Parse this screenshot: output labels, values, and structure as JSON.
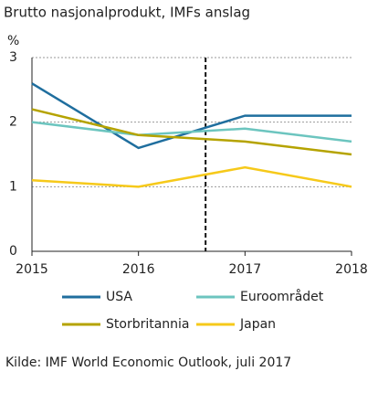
{
  "chart_data": {
    "type": "line",
    "title": "Brutto nasjonalprodukt, IMFs anslag",
    "y_label": "%",
    "x": [
      2015,
      2016,
      2017,
      2018
    ],
    "xlim": [
      2015,
      2018
    ],
    "xticks": [
      2015,
      2016,
      2017,
      2018
    ],
    "ylim": [
      0,
      3
    ],
    "yticks": [
      0,
      1,
      2,
      3
    ],
    "grid": true,
    "forecast_line_x": 2016.63,
    "series": [
      {
        "name": "USA",
        "color": "#1f6e9e",
        "values": [
          2.6,
          1.6,
          2.1,
          2.1
        ]
      },
      {
        "name": "Euroområdet",
        "color": "#6cc5bf",
        "values": [
          2.0,
          1.8,
          1.9,
          1.7
        ]
      },
      {
        "name": "Storbritannia",
        "color": "#b5a300",
        "values": [
          2.2,
          1.8,
          1.7,
          1.5
        ]
      },
      {
        "name": "Japan",
        "color": "#f6c91a",
        "values": [
          1.1,
          1.0,
          1.3,
          1.0
        ]
      }
    ],
    "source": "Kilde: IMF World Economic Outlook, juli 2017"
  }
}
